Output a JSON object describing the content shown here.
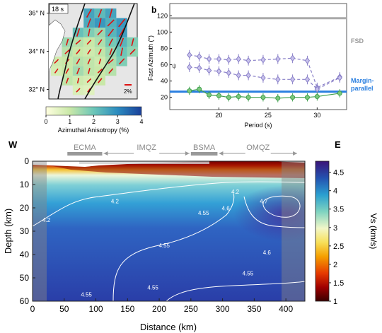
{
  "chart_data": [
    {
      "type": "heatmap",
      "panel": "map",
      "label": "18 s",
      "lat_ticks": [
        "36° N",
        "34° N",
        "32° N"
      ],
      "lat_values": [
        36,
        34,
        32
      ],
      "colorbar_ticks": [
        "0",
        "1",
        "2",
        "3",
        "4"
      ],
      "colorbar_label": "Azimuthal Anisotropy (%)",
      "colorbar_range": [
        0,
        4
      ],
      "scale_label": "2%",
      "grid_values": [
        [
          0,
          0,
          0,
          2.6,
          2.2,
          2.6,
          0,
          0
        ],
        [
          0,
          0,
          0,
          2.5,
          2.8,
          2.4,
          2.8,
          0
        ],
        [
          0,
          0,
          2.1,
          1.8,
          1.5,
          2.3,
          2.7,
          0
        ],
        [
          0,
          1.5,
          1.2,
          1.0,
          1.3,
          1.9,
          2.3,
          1.8
        ],
        [
          0,
          1.2,
          1.0,
          0.9,
          1.1,
          1.5,
          2.0,
          1.6
        ],
        [
          0.9,
          1.0,
          1.2,
          1.1,
          0.9,
          1.3,
          1.8,
          0
        ],
        [
          0.8,
          1.0,
          1.4,
          1.1,
          1.0,
          1.2,
          0,
          0
        ],
        [
          0,
          1.1,
          0.9,
          0.8,
          1.0,
          0,
          0,
          0
        ],
        [
          0,
          0,
          0.7,
          0.6,
          0,
          0,
          0,
          0
        ]
      ]
    },
    {
      "type": "line",
      "panel": "fast-azimuth",
      "panel_letter": "b",
      "ylabel": "Fast Azimuth (°)",
      "xlabel": "Period (s)",
      "x_ticks": [
        "20",
        "25",
        "30"
      ],
      "y_ticks": [
        "20",
        "40",
        "60",
        "80",
        "100",
        "120"
      ],
      "xlim": [
        15,
        33
      ],
      "ylim": [
        5,
        135
      ],
      "psi_label": "ψ",
      "fsd_label": "FSD",
      "fsd_value": 117,
      "margin_value": 27,
      "margin_label_1": "Margin-",
      "margin_label_2": "parallel",
      "series": [
        {
          "values": [
            [
              17,
              72
            ],
            [
              18,
              70
            ],
            [
              19,
              67
            ],
            [
              20,
              67
            ],
            [
              21,
              66
            ],
            [
              22,
              67
            ],
            [
              23,
              65
            ],
            [
              24.5,
              66
            ],
            [
              26,
              67
            ],
            [
              27.5,
              68
            ],
            [
              29,
              65
            ],
            [
              30,
              32
            ],
            [
              32.3,
              45
            ]
          ],
          "color": "#8a80c8"
        },
        {
          "values": [
            [
              17,
              57
            ],
            [
              18,
              56
            ],
            [
              19,
              53
            ],
            [
              20,
              52
            ],
            [
              21,
              50
            ],
            [
              22,
              47
            ],
            [
              23,
              47
            ],
            [
              24.5,
              44
            ],
            [
              26,
              42
            ],
            [
              27.5,
              42
            ],
            [
              29,
              42
            ],
            [
              30,
              30
            ],
            [
              32.3,
              44
            ]
          ],
          "color": "#8a80c8"
        },
        {
          "values": [
            [
              17,
              28
            ],
            [
              18,
              30
            ],
            [
              19,
              23
            ],
            [
              20,
              22
            ],
            [
              21,
              20
            ],
            [
              22,
              21
            ],
            [
              23,
              20
            ],
            [
              24.5,
              20
            ],
            [
              26,
              19
            ],
            [
              27.5,
              20
            ],
            [
              29,
              20
            ],
            [
              30,
              21
            ],
            [
              32.3,
              25
            ]
          ],
          "color": "#3ea04c"
        }
      ]
    },
    {
      "type": "heatmap",
      "panel": "cross-section",
      "title_west": "W",
      "title_east": "E",
      "xlabel": "Distance (km)",
      "ylabel": "Depth (km)",
      "x_ticks": [
        "0",
        "50",
        "100",
        "150",
        "200",
        "250",
        "300",
        "350",
        "400"
      ],
      "y_ticks": [
        "0",
        "10",
        "20",
        "30",
        "40",
        "50",
        "60"
      ],
      "xlim": [
        0,
        430
      ],
      "ylim": [
        0,
        60
      ],
      "regions": [
        {
          "name": "ECMA",
          "type": "bar",
          "x0": 55,
          "x1": 110
        },
        {
          "name": "IMQZ",
          "type": "arrow",
          "x0": 110,
          "x1": 250
        },
        {
          "name": "BSMA",
          "type": "bar",
          "x0": 250,
          "x1": 292
        },
        {
          "name": "OMQZ",
          "type": "arrow",
          "x0": 292,
          "x1": 420
        }
      ],
      "contour_labels": [
        {
          "text": "4.2",
          "x": 22,
          "y": 26
        },
        {
          "text": "4.2",
          "x": 130,
          "y": 18
        },
        {
          "text": "4.2",
          "x": 320,
          "y": 14
        },
        {
          "text": "4.55",
          "x": 208,
          "y": 37
        },
        {
          "text": "4.55",
          "x": 270,
          "y": 23
        },
        {
          "text": "4.55",
          "x": 85,
          "y": 58
        },
        {
          "text": "4.55",
          "x": 190,
          "y": 55
        },
        {
          "text": "4.55",
          "x": 340,
          "y": 49
        },
        {
          "text": "4.6",
          "x": 305,
          "y": 21
        },
        {
          "text": "4.6",
          "x": 370,
          "y": 40
        },
        {
          "text": "4.7",
          "x": 365,
          "y": 18
        }
      ],
      "colorbar_label": "Vs (km/s)",
      "colorbar_ticks": [
        "1",
        "1.5",
        "2",
        "2.5",
        "3",
        "3.5",
        "4",
        "4.5"
      ],
      "colorbar_range": [
        1,
        4.8
      ]
    }
  ]
}
